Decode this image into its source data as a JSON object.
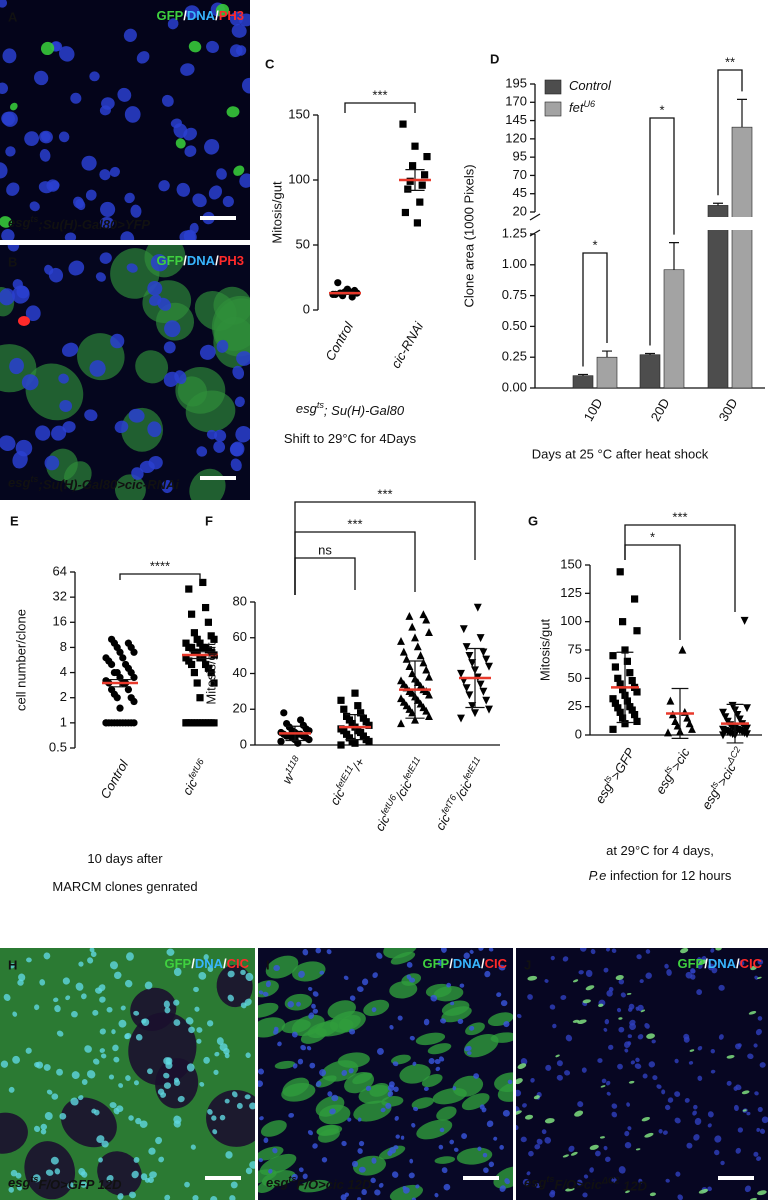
{
  "images": [
    {
      "panel": "A",
      "channels": [
        {
          "t": "GFP",
          "color": "#3fd13f"
        },
        {
          "t": "/",
          "color": "#ffffff"
        },
        {
          "t": "DNA",
          "color": "#38b6ff"
        },
        {
          "t": "/",
          "color": "#ffffff"
        },
        {
          "t": "PH3",
          "color": "#ff2a2a"
        }
      ],
      "caption": [
        {
          "t": "esg"
        },
        {
          "t": "ts",
          "sup": true
        },
        {
          "t": ";Su(H)-Gal80>YFP"
        }
      ]
    },
    {
      "panel": "B",
      "channels": [
        {
          "t": "GFP",
          "color": "#3fd13f"
        },
        {
          "t": "/",
          "color": "#ffffff"
        },
        {
          "t": "DNA",
          "color": "#38b6ff"
        },
        {
          "t": "/",
          "color": "#ffffff"
        },
        {
          "t": "PH3",
          "color": "#ff2a2a"
        }
      ],
      "caption": [
        {
          "t": "esg"
        },
        {
          "t": "ts",
          "sup": true
        },
        {
          "t": ";Su(H)-Gal80>cic-RNAi"
        }
      ]
    },
    {
      "panel": "H",
      "channels": [
        {
          "t": "GFP",
          "color": "#3fd13f"
        },
        {
          "t": "/",
          "color": "#ffffff"
        },
        {
          "t": "DNA",
          "color": "#38b6ff"
        },
        {
          "t": "/",
          "color": "#ffffff"
        },
        {
          "t": "CIC",
          "color": "#ff2a2a"
        }
      ],
      "caption": [
        {
          "t": "esg"
        },
        {
          "t": "ts",
          "sup": true
        },
        {
          "t": "F/O>GFP 12D"
        }
      ]
    },
    {
      "panel": "I",
      "channels": [
        {
          "t": "GFP",
          "color": "#3fd13f"
        },
        {
          "t": "/",
          "color": "#ffffff"
        },
        {
          "t": "DNA",
          "color": "#38b6ff"
        },
        {
          "t": "/",
          "color": "#ffffff"
        },
        {
          "t": "CIC",
          "color": "#ff2a2a"
        }
      ],
      "caption": [
        {
          "t": "esg"
        },
        {
          "t": "ts",
          "sup": true
        },
        {
          "t": "F/O>cic 12D"
        }
      ]
    },
    {
      "panel": "J",
      "channels": [
        {
          "t": "GFP",
          "color": "#3fd13f"
        },
        {
          "t": "/",
          "color": "#ffffff"
        },
        {
          "t": "DNA",
          "color": "#38b6ff"
        },
        {
          "t": "/",
          "color": "#ffffff"
        },
        {
          "t": "CIC",
          "color": "#ff2a2a"
        }
      ],
      "caption": [
        {
          "t": "esg"
        },
        {
          "t": "ts",
          "sup": true
        },
        {
          "t": "F/O>cic"
        },
        {
          "t": "ΔC2",
          "sup": true
        },
        {
          "t": " 12D"
        }
      ]
    }
  ],
  "chart_data": [
    {
      "panel": "C",
      "type": "dotplot",
      "ylabel": "Mitosis/gut",
      "ylim": [
        0,
        150
      ],
      "yticks": [
        0,
        50,
        100,
        150
      ],
      "mean_color": "#e8392b",
      "marker_color": "#000000",
      "categories": [
        [
          {
            "t": "Control"
          }
        ],
        [
          {
            "t": "cic-RNAi"
          }
        ]
      ],
      "groups": [
        {
          "marker": "circle",
          "values": [
            12,
            14,
            13,
            11,
            15,
            13,
            10,
            21,
            14,
            12,
            16
          ],
          "mean": 13,
          "error": 1
        },
        {
          "marker": "square",
          "values": [
            143,
            126,
            118,
            111,
            104,
            99,
            96,
            93,
            83,
            75,
            67
          ],
          "mean": 100,
          "error": 8
        }
      ],
      "comparisons": [
        {
          "groups": [
            0,
            1
          ],
          "label": "***"
        }
      ],
      "captions": [
        [
          {
            "t": "esg",
            "italic": true
          },
          {
            "t": "ts",
            "sup": true,
            "italic": true
          },
          {
            "t": "; Su(H)-Gal80",
            "italic": true
          }
        ],
        [
          {
            "t": "Shift to 29°C  for 4Days"
          }
        ]
      ]
    },
    {
      "panel": "D",
      "type": "bar",
      "ylabel": "Clone area (1000 Pixels)",
      "xlabel": "Days at 25 °C after heat shock",
      "categories": [
        "10D",
        "20D",
        "30D"
      ],
      "axes": [
        {
          "ylim": [
            0,
            1.25
          ],
          "yticks": [
            {
              "value": 0,
              "label": "0.00"
            },
            {
              "value": 0.25,
              "label": "0.25"
            },
            {
              "value": 0.5,
              "label": "0.50"
            },
            {
              "value": 0.75,
              "label": "0.75"
            },
            {
              "value": 1,
              "label": "1.00"
            },
            {
              "value": 1.25,
              "label": "1.25"
            }
          ]
        },
        {
          "ylim": [
            20,
            195
          ],
          "yticks": [
            20,
            45,
            70,
            95,
            120,
            145,
            170,
            195
          ]
        }
      ],
      "series": [
        {
          "name": [
            {
              "t": "Control",
              "italic": true
            }
          ],
          "color": "#4d4d4d",
          "values": [
            0.1,
            0.27,
            29
          ],
          "errors": [
            0.01,
            0.01,
            3
          ]
        },
        {
          "name": [
            {
              "t": "fet",
              "italic": true
            },
            {
              "t": "U6",
              "sup": true,
              "italic": true
            }
          ],
          "color": "#a3a3a3",
          "values": [
            0.25,
            0.96,
            136
          ],
          "errors": [
            0.05,
            0.22,
            38
          ]
        }
      ],
      "legend": "upper left",
      "comparisons": [
        {
          "category": 0,
          "label": "*"
        },
        {
          "category": 1,
          "label": "*"
        },
        {
          "category": 2,
          "label": "**"
        }
      ]
    },
    {
      "panel": "E",
      "type": "dotplot",
      "ylabel": "cell number/clone",
      "ylim": [
        0.5,
        64
      ],
      "log": true,
      "yticks": [
        0.5,
        1,
        2,
        4,
        8,
        16,
        32,
        64
      ],
      "mean_color": "#e8392b",
      "marker_color": "#000000",
      "categories": [
        [
          {
            "t": "Control"
          }
        ],
        [
          {
            "t": "cic"
          },
          {
            "t": "fetU6",
            "sup": true
          }
        ]
      ],
      "groups": [
        {
          "marker": "circle",
          "values": [
            1,
            1,
            1,
            1,
            1,
            1,
            1,
            1,
            1,
            1,
            1,
            1,
            1.5,
            1.8,
            2,
            2,
            2.2,
            2.5,
            2.5,
            3,
            3,
            3,
            3.2,
            3.5,
            3.5,
            4,
            4,
            4,
            4.5,
            5,
            5,
            5.5,
            6,
            6,
            7,
            7,
            8,
            8,
            9,
            9,
            10
          ],
          "mean": 3,
          "error": 0.3
        },
        {
          "marker": "square",
          "values": [
            1,
            1,
            1,
            1,
            1,
            1,
            1,
            1,
            1,
            1,
            1,
            1,
            2,
            3,
            3,
            4,
            4,
            4.5,
            5,
            5,
            5.5,
            6,
            6,
            6,
            6.5,
            7,
            7,
            7,
            7.5,
            8,
            8,
            8,
            8,
            9,
            9,
            10,
            10,
            11,
            12,
            16,
            20,
            24,
            40,
            48
          ],
          "mean": 6.5,
          "error": 0.6
        }
      ],
      "comparisons": [
        {
          "groups": [
            0,
            1
          ],
          "label": "****"
        }
      ],
      "captions": [
        [
          {
            "t": "10 days after"
          }
        ],
        [
          {
            "t": "MARCM clones genrated"
          }
        ]
      ]
    },
    {
      "panel": "F",
      "type": "dotplot",
      "ylabel": "Mitosis/gut",
      "ylim": [
        0,
        80
      ],
      "yticks": [
        0,
        20,
        40,
        60,
        80
      ],
      "x_axis": true,
      "mean_color": "#e8392b",
      "marker_color": "#000000",
      "categories": [
        [
          {
            "t": "w"
          },
          {
            "t": "1118",
            "sup": true
          }
        ],
        [
          {
            "t": "cic"
          },
          {
            "t": "fetE11",
            "sup": true
          },
          {
            "t": "/+"
          }
        ],
        [
          {
            "t": "cic"
          },
          {
            "t": "fetU6",
            "sup": true
          },
          {
            "t": "/cic"
          },
          {
            "t": "fetE11",
            "sup": true
          }
        ],
        [
          {
            "t": "cic"
          },
          {
            "t": "fetT6",
            "sup": true
          },
          {
            "t": "/cic"
          },
          {
            "t": "fetE11",
            "sup": true
          }
        ]
      ],
      "groups": [
        {
          "marker": "circle",
          "values": [
            2,
            3,
            3,
            4,
            4,
            5,
            5,
            5,
            6,
            6,
            6,
            7,
            7,
            8,
            8,
            9,
            10,
            11,
            12,
            14,
            18,
            1,
            2,
            3
          ],
          "mean": 6.5,
          "error": 4
        },
        {
          "marker": "square",
          "values": [
            0,
            1,
            2,
            2,
            3,
            4,
            5,
            6,
            7,
            8,
            8,
            9,
            10,
            11,
            12,
            13,
            14,
            15,
            16,
            18,
            20,
            22,
            25,
            29
          ],
          "mean": 10,
          "error": 7
        },
        {
          "marker": "triangle",
          "values": [
            12,
            14,
            16,
            18,
            19,
            20,
            21,
            22,
            23,
            24,
            25,
            26,
            27,
            28,
            29,
            30,
            30,
            31,
            32,
            33,
            34,
            35,
            36,
            37,
            38,
            40,
            42,
            44,
            46,
            48,
            50,
            52,
            55,
            58,
            60,
            63,
            66,
            70,
            72,
            73
          ],
          "mean": 31,
          "error": 16
        },
        {
          "marker": "triangle-down",
          "values": [
            15,
            18,
            20,
            22,
            25,
            28,
            30,
            32,
            34,
            36,
            38,
            40,
            42,
            44,
            46,
            48,
            50,
            52,
            55,
            60,
            65,
            77
          ],
          "mean": 37.5,
          "error": 16.5
        }
      ],
      "comparisons": [
        {
          "groups": [
            0,
            1
          ],
          "label": "ns"
        },
        {
          "groups": [
            0,
            2
          ],
          "label": "***"
        },
        {
          "groups": [
            0,
            3
          ],
          "label": "***"
        }
      ]
    },
    {
      "panel": "G",
      "type": "dotplot",
      "ylabel": "Mitosis/gut",
      "ylim": [
        0,
        150
      ],
      "yticks": [
        0,
        25,
        50,
        75,
        100,
        125,
        150
      ],
      "x_axis": true,
      "mean_color": "#e8392b",
      "marker_color": "#000000",
      "categories": [
        [
          {
            "t": "esg"
          },
          {
            "t": "ts",
            "sup": true
          },
          {
            "t": ">GFP"
          }
        ],
        [
          {
            "t": "esg"
          },
          {
            "t": "ts",
            "sup": true
          },
          {
            "t": ">cic"
          }
        ],
        [
          {
            "t": "esg"
          },
          {
            "t": "ts",
            "sup": true
          },
          {
            "t": ">cic"
          },
          {
            "t": "ΔC2",
            "sup": true
          }
        ]
      ],
      "groups": [
        {
          "marker": "square",
          "values": [
            5,
            10,
            12,
            15,
            18,
            20,
            22,
            24,
            25,
            28,
            30,
            32,
            35,
            38,
            40,
            42,
            45,
            48,
            50,
            55,
            60,
            65,
            70,
            75,
            92,
            100,
            120,
            144
          ],
          "mean": 42,
          "error": 31
        },
        {
          "marker": "triangle",
          "values": [
            2,
            3,
            5,
            8,
            10,
            12,
            15,
            18,
            20,
            30,
            75
          ],
          "mean": 19,
          "error": 22
        },
        {
          "marker": "triangle-down",
          "values": [
            0,
            0,
            1,
            1,
            2,
            2,
            3,
            3,
            4,
            4,
            5,
            5,
            6,
            6,
            7,
            8,
            9,
            10,
            12,
            14,
            16,
            18,
            20,
            22,
            24,
            26,
            101
          ],
          "mean": 10,
          "error": 17
        }
      ],
      "comparisons": [
        {
          "groups": [
            0,
            1
          ],
          "label": "*"
        },
        {
          "groups": [
            0,
            2
          ],
          "label": "***"
        }
      ],
      "captions": [
        [
          {
            "t": "at 29°C  for 4 days,"
          }
        ],
        [
          {
            "t": "P.e",
            "italic": true
          },
          {
            "t": " infection for 12 hours"
          }
        ]
      ]
    }
  ]
}
